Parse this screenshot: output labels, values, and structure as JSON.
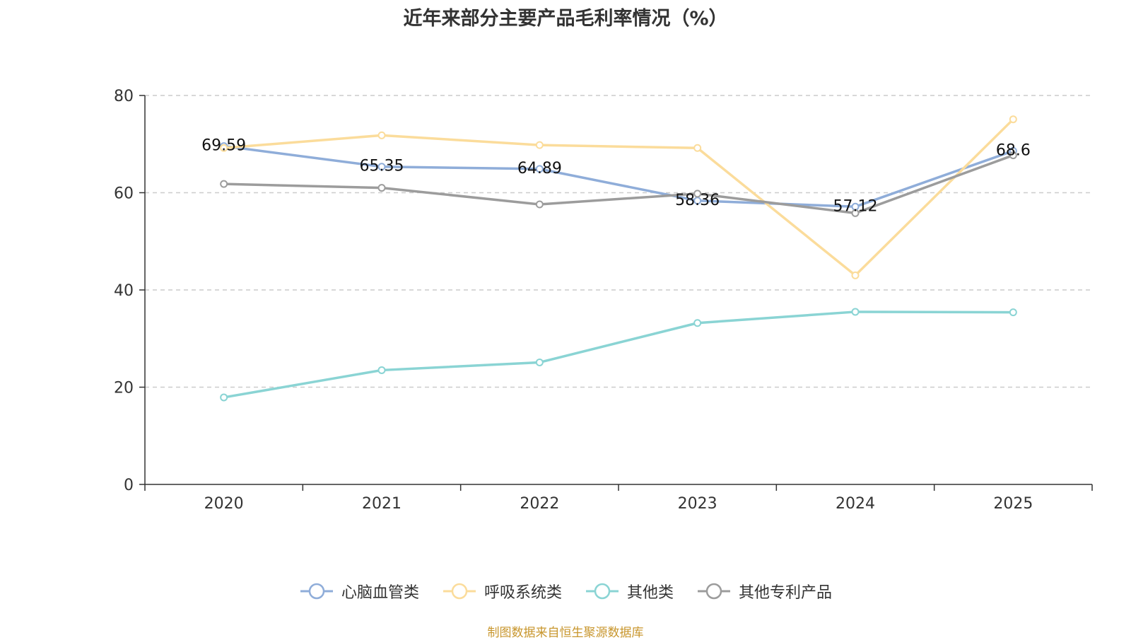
{
  "chart_data": {
    "type": "line",
    "title": "近年来部分主要产品毛利率情况（%）",
    "categories": [
      "2020",
      "2021",
      "2022",
      "2023",
      "2024",
      "2025"
    ],
    "ylim": [
      0,
      80
    ],
    "yticks": [
      0,
      20,
      40,
      60,
      80
    ],
    "grid": true,
    "legend_position": "bottom",
    "series": [
      {
        "name": "心脑血管类",
        "color": "#8fadd9",
        "values": [
          69.59,
          65.35,
          64.89,
          58.36,
          57.12,
          68.6
        ],
        "labels": [
          "69.59",
          "65.35",
          "64.89",
          "58.36",
          "57.12",
          "68.6"
        ]
      },
      {
        "name": "呼吸系统类",
        "color": "#fbdc9b",
        "values": [
          69.2,
          71.8,
          69.8,
          69.2,
          43.0,
          75.1
        ]
      },
      {
        "name": "其他类",
        "color": "#8ad4d4",
        "values": [
          17.9,
          23.5,
          25.1,
          33.2,
          35.5,
          35.4
        ]
      },
      {
        "name": "其他专利产品",
        "color": "#9c9c9c",
        "values": [
          61.8,
          61.0,
          57.6,
          59.8,
          55.8,
          67.7
        ]
      }
    ]
  },
  "source": "制图数据来自恒生聚源数据库"
}
